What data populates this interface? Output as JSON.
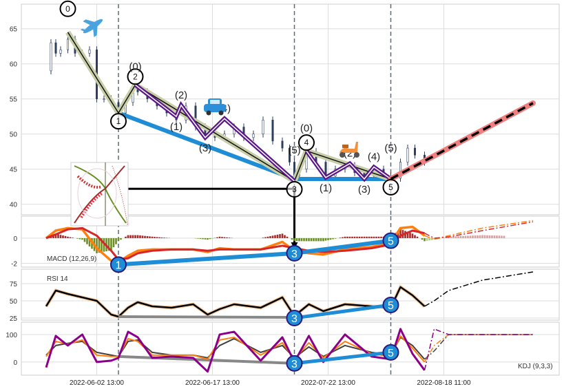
{
  "chart_data": {
    "type": "line",
    "title": "",
    "x_unit": "bar index",
    "x_ticks": [
      {
        "x": 21,
        "label": "2022-06-02 13:00"
      },
      {
        "x": 69,
        "label": "2022-06-17 13:00"
      },
      {
        "x": 117,
        "label": "2022-07-22 13:00"
      },
      {
        "x": 165,
        "label": "2022-08-18 11:00"
      }
    ],
    "vlines": [
      30,
      103,
      143
    ],
    "price": {
      "ylim": [
        38.5,
        68.5
      ],
      "y_ticks": [
        40,
        45,
        50,
        55,
        60,
        65
      ],
      "x": [
        0,
        2,
        4,
        6,
        9,
        12,
        15,
        18,
        21,
        24,
        27,
        30,
        33,
        36,
        38,
        42,
        46,
        50,
        54,
        58,
        62,
        66,
        70,
        74,
        78,
        82,
        86,
        90,
        94,
        98,
        101,
        103,
        105,
        108,
        112,
        116,
        120,
        124,
        128,
        132,
        136,
        140,
        143,
        147,
        150,
        153,
        157
      ],
      "close": [
        59,
        63,
        61.5,
        62,
        63.5,
        61.5,
        61.5,
        62,
        55,
        55,
        54.5,
        53,
        54.5,
        56.5,
        56,
        55,
        54,
        53,
        52,
        54,
        51,
        50,
        49.5,
        50,
        51,
        49.5,
        50,
        52,
        49,
        48,
        46,
        44,
        45,
        47.5,
        46,
        44,
        45,
        45.5,
        44.5,
        44,
        45,
        44,
        43.7,
        46,
        48,
        47,
        46
      ]
    },
    "waves": {
      "primary": [
        {
          "x": 9,
          "y": 64.5,
          "label": "0"
        },
        {
          "x": 30,
          "y": 53,
          "label": "1"
        },
        {
          "x": 37,
          "y": 57,
          "label": "2"
        },
        {
          "x": 103,
          "y": 43.3,
          "label": "3"
        },
        {
          "x": 108,
          "y": 47.6,
          "label": "4"
        },
        {
          "x": 143,
          "y": 43.6,
          "label": "5"
        }
      ],
      "sub1": [
        {
          "x": 37,
          "y": 57,
          "label": "(0)"
        },
        {
          "x": 54,
          "y": 52.5,
          "label": "(1)"
        },
        {
          "x": 56,
          "y": 54.1,
          "label": "(2)"
        },
        {
          "x": 66,
          "y": 49.5,
          "label": "(3)"
        },
        {
          "x": 74,
          "y": 52.2,
          "label": "(4)"
        },
        {
          "x": 103,
          "y": 43.3,
          "label": "(5)"
        }
      ],
      "sub2": [
        {
          "x": 108,
          "y": 47.6,
          "label": "(0)"
        },
        {
          "x": 116,
          "y": 43.8,
          "label": "(1)"
        },
        {
          "x": 126,
          "y": 45.8,
          "label": "(2)"
        },
        {
          "x": 132,
          "y": 43.6,
          "label": "(3)"
        },
        {
          "x": 136,
          "y": 45.3,
          "label": "(4)"
        },
        {
          "x": 143,
          "y": 43.6,
          "label": "(5)"
        }
      ],
      "trendline": [
        {
          "x": 30,
          "y": 53
        },
        {
          "x": 103,
          "y": 43.6
        },
        {
          "x": 143,
          "y": 43.6
        }
      ],
      "projection": [
        {
          "x": 143,
          "y": 43.6
        },
        {
          "x": 202,
          "y": 54.4
        }
      ],
      "level_line": {
        "y": 42.2
      }
    },
    "indicator_x": [
      0,
      4,
      9,
      15,
      21,
      27,
      30,
      34,
      38,
      44,
      52,
      61,
      67,
      72,
      78,
      89,
      98,
      103,
      109,
      115,
      124,
      135,
      143,
      147,
      152,
      157,
      161,
      167,
      181,
      202
    ],
    "actual_until": 157,
    "macd": {
      "label": "MACD (12,26,9)",
      "ylim": [
        -2.3,
        1.75
      ],
      "y_ticks": [
        -2,
        0
      ],
      "dif": [
        0,
        0.6,
        0.8,
        0.7,
        -0.8,
        -1.8,
        -1.9,
        -1.4,
        -1.0,
        -0.9,
        -0.9,
        -0.9,
        -1.1,
        -0.8,
        -0.9,
        -0.9,
        -0.3,
        -1.0,
        -1.2,
        -1.3,
        -0.9,
        -0.7,
        -0.4,
        0.8,
        0.9,
        0.2,
        -0.1,
        0.2,
        0.8,
        1.4
      ],
      "dea": [
        0,
        0.3,
        0.7,
        0.8,
        0.2,
        -1.0,
        -1.7,
        -1.6,
        -1.2,
        -1.0,
        -0.9,
        -0.9,
        -1.0,
        -0.9,
        -0.9,
        -0.9,
        -0.6,
        -0.8,
        -1.0,
        -1.1,
        -1.0,
        -0.8,
        -0.5,
        0.2,
        0.6,
        0.4,
        0.0,
        0.1,
        0.6,
        1.3
      ],
      "markers": [
        {
          "x": 30,
          "y": -2.1,
          "label": "1"
        },
        {
          "x": 103,
          "y": -1.2,
          "label": "3"
        },
        {
          "x": 143,
          "y": -0.2,
          "label": "5"
        }
      ]
    },
    "rsi": {
      "label": "RSI 14",
      "ylim": [
        22,
        96
      ],
      "y_ticks": [
        25,
        50,
        75
      ],
      "values": [
        42,
        65,
        60,
        55,
        50,
        30,
        27,
        40,
        48,
        42,
        40,
        45,
        30,
        38,
        45,
        40,
        55,
        28,
        45,
        35,
        45,
        42,
        40,
        70,
        58,
        42,
        50,
        65,
        80,
        92
      ],
      "markers": [
        {
          "x": 103,
          "y": 25,
          "label": "3"
        },
        {
          "x": 143,
          "y": 44,
          "label": "5"
        }
      ],
      "divergence": [
        {
          "x": 30,
          "y": 27
        },
        {
          "x": 103,
          "y": 26
        }
      ]
    },
    "kdj": {
      "label": "KDJ (9,3,3)",
      "ylim": [
        -48,
        145
      ],
      "y_ticks": [
        0,
        100
      ],
      "k": [
        20,
        75,
        65,
        80,
        25,
        20,
        20,
        85,
        75,
        25,
        25,
        25,
        10,
        80,
        90,
        25,
        70,
        10,
        70,
        15,
        75,
        30,
        20,
        95,
        50,
        0,
        60,
        100,
        100,
        100
      ],
      "d": [
        25,
        60,
        68,
        75,
        35,
        25,
        20,
        75,
        80,
        35,
        25,
        25,
        15,
        60,
        85,
        35,
        60,
        15,
        55,
        20,
        60,
        35,
        25,
        90,
        60,
        10,
        40,
        100,
        100,
        100
      ],
      "j": [
        -20,
        95,
        60,
        100,
        0,
        5,
        15,
        110,
        90,
        15,
        20,
        15,
        -35,
        100,
        110,
        5,
        90,
        0,
        95,
        0,
        100,
        20,
        10,
        120,
        30,
        -30,
        120,
        100,
        100,
        100
      ],
      "markers": [
        {
          "x": 103,
          "y": -5,
          "label": "3"
        },
        {
          "x": 143,
          "y": 35,
          "label": "5"
        }
      ],
      "divergence": [
        {
          "x": 30,
          "y": 20
        },
        {
          "x": 103,
          "y": -5
        }
      ]
    },
    "colors": {
      "blue": "#1f8dd6",
      "purple": "#5b168a",
      "olive": "#c8cfa8",
      "projection": "#f08080",
      "dif": "#ff7f0e",
      "dea": "#d62728",
      "hist_pos": "#a52a2a",
      "hist_neg": "#6b8e23",
      "rsi": "#000000",
      "kdj_k": "#ff7f0e",
      "kdj_d": "#404040",
      "kdj_j": "#8b008b",
      "candle": "#2f3e5c"
    }
  }
}
